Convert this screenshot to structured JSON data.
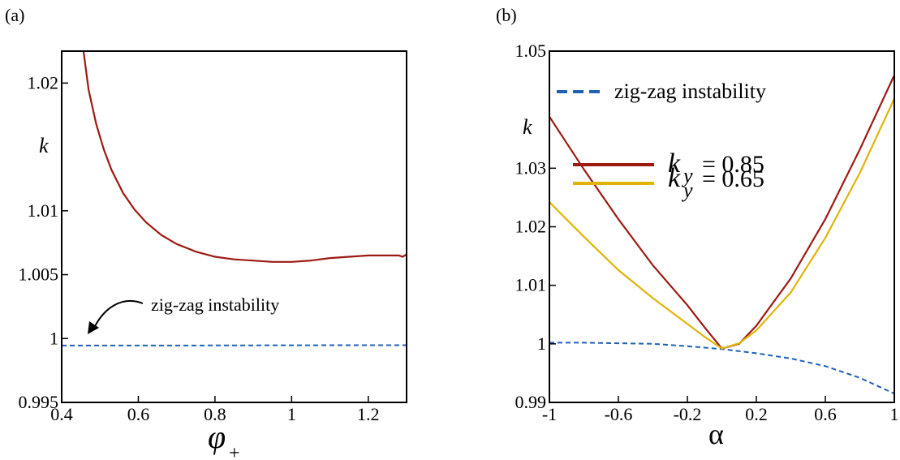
{
  "chart_data": [
    {
      "panel_label": "(a)",
      "type": "line",
      "xlabel": "φ",
      "xlabel_sub": "+",
      "ylabel": "k",
      "xlim": [
        0.4,
        1.3
      ],
      "ylim": [
        0.995,
        1.0225
      ],
      "xticks": [
        "0.4",
        "0.6",
        "0.8",
        "1",
        "1.2"
      ],
      "yticks": [
        "0.995",
        "1",
        "1.005",
        "1.01",
        "1.02"
      ],
      "ytick_values": [
        0.995,
        1.0,
        1.005,
        1.01,
        1.02
      ],
      "xtick_values": [
        0.4,
        0.6,
        0.8,
        1.0,
        1.2
      ],
      "annotation": "zig-zag instability",
      "series": [
        {
          "color": "#9b1a12",
          "style": "solid",
          "x": [
            0.457,
            0.47,
            0.49,
            0.51,
            0.53,
            0.56,
            0.59,
            0.62,
            0.66,
            0.7,
            0.75,
            0.8,
            0.85,
            0.9,
            0.95,
            1.0,
            1.05,
            1.1,
            1.15,
            1.2,
            1.25,
            1.28,
            1.29,
            1.3
          ],
          "y": [
            1.0225,
            1.0195,
            1.0168,
            1.0148,
            1.0132,
            1.0114,
            1.0101,
            1.0091,
            1.0081,
            1.0074,
            1.0068,
            1.0064,
            1.0062,
            1.0061,
            1.006,
            1.006,
            1.0061,
            1.0063,
            1.0064,
            1.0065,
            1.0065,
            1.0065,
            1.0064,
            1.0066
          ]
        },
        {
          "color": "#2060b8",
          "style": "dashed",
          "x": [
            0.4,
            0.6,
            0.8,
            1.0,
            1.2,
            1.3
          ],
          "y": [
            0.99945,
            0.99945,
            0.99946,
            0.99947,
            0.99948,
            0.99948
          ]
        }
      ]
    },
    {
      "panel_label": "(b)",
      "type": "line",
      "xlabel": "α",
      "ylabel": "k",
      "xlim": [
        -1,
        1
      ],
      "ylim": [
        0.99,
        1.05
      ],
      "xticks": [
        "-1",
        "-0.6",
        "-0.2",
        "0.2",
        "0.6",
        "1"
      ],
      "yticks": [
        "0.99",
        "1",
        "1.01",
        "1.02",
        "1.03",
        "1.05"
      ],
      "ytick_values": [
        0.99,
        1.0,
        1.01,
        1.02,
        1.03,
        1.05
      ],
      "xtick_values": [
        -1,
        -0.6,
        -0.2,
        0.2,
        0.6,
        1.0
      ],
      "legend_placement": "top-left",
      "series": [
        {
          "name": "zig-zag instability",
          "color": "#2060b8",
          "style": "dashed",
          "x": [
            -1,
            -0.8,
            -0.6,
            -0.4,
            -0.2,
            0.0,
            0.2,
            0.4,
            0.6,
            0.8,
            1.0
          ],
          "y": [
            1.0002,
            1.0002,
            1.0001,
            1.0,
            0.9996,
            0.9991,
            0.9984,
            0.9975,
            0.9962,
            0.9942,
            0.9915
          ]
        },
        {
          "name_k": "k",
          "name_sub": "y",
          "name_value": "= 0.85",
          "color": "#9b1a12",
          "style": "solid",
          "x": [
            -1,
            -0.8,
            -0.6,
            -0.4,
            -0.2,
            -0.1,
            0.0,
            0.1,
            0.2,
            0.4,
            0.6,
            0.8,
            1.0
          ],
          "y": [
            1.0388,
            1.0298,
            1.0213,
            1.0134,
            1.0066,
            1.0028,
            0.9992,
            1.0,
            1.0031,
            1.0112,
            1.0213,
            1.0332,
            1.0459
          ]
        },
        {
          "name_k": "k",
          "name_sub": "y",
          "name_value": "= 0.65",
          "color": "#e1b40a",
          "style": "solid",
          "x": [
            -1,
            -0.8,
            -0.6,
            -0.4,
            -0.2,
            -0.1,
            0.0,
            0.1,
            0.2,
            0.4,
            0.6,
            0.8,
            1.0
          ],
          "y": [
            1.0242,
            1.0183,
            1.0126,
            1.0078,
            1.0034,
            1.0012,
            0.9992,
            1.0001,
            1.0023,
            1.0088,
            1.0181,
            1.0292,
            1.0419
          ]
        }
      ]
    }
  ]
}
